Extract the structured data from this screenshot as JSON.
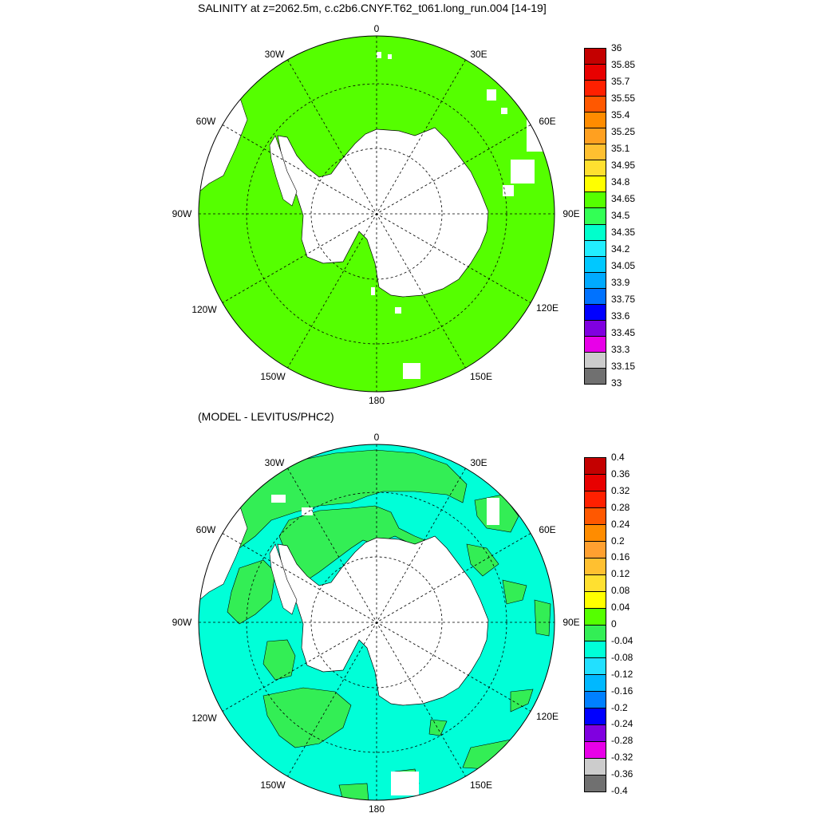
{
  "panels": {
    "top": {
      "title": "SALINITY at z=2062.5m, c.c2b6.CNYF.T62_t061.long_run.004 [14-19]",
      "colorbar": {
        "labels": [
          "36",
          "35.85",
          "35.7",
          "35.55",
          "35.4",
          "35.25",
          "35.1",
          "34.95",
          "34.8",
          "34.65",
          "34.5",
          "34.35",
          "34.2",
          "34.05",
          "33.9",
          "33.75",
          "33.6",
          "33.45",
          "33.3",
          "33.15",
          "33"
        ],
        "colors": [
          "#c40000",
          "#e80000",
          "#ff2000",
          "#ff5800",
          "#ff8c00",
          "#ffa020",
          "#ffc030",
          "#ffe030",
          "#ffff00",
          "#55ff00",
          "#33ff55",
          "#00ffcc",
          "#22eeff",
          "#00c8ff",
          "#00aaff",
          "#0072ff",
          "#0000ff",
          "#8000e0",
          "#e800e8",
          "#cccccc",
          "#707070"
        ]
      },
      "field_color": "#55ff00"
    },
    "bottom": {
      "title": "(MODEL - LEVITUS/PHC2)",
      "colorbar": {
        "labels": [
          "0.4",
          "0.36",
          "0.32",
          "0.28",
          "0.24",
          "0.2",
          "0.16",
          "0.12",
          "0.08",
          "0.04",
          "0",
          "-0.04",
          "-0.08",
          "-0.12",
          "-0.16",
          "-0.2",
          "-0.24",
          "-0.28",
          "-0.32",
          "-0.36",
          "-0.4"
        ],
        "colors": [
          "#c40000",
          "#e80000",
          "#ff2000",
          "#ff5800",
          "#ff8c00",
          "#ffa030",
          "#ffc030",
          "#ffe030",
          "#ffff00",
          "#55ff00",
          "#33ee55",
          "#00ffd8",
          "#22e0ff",
          "#00b8ff",
          "#0080ff",
          "#0000ff",
          "#8000e0",
          "#e800e8",
          "#cccccc",
          "#707070"
        ]
      },
      "field_color": "#00ffd8",
      "positive_color": "#33ee55"
    }
  },
  "map": {
    "projection": "south-polar stereographic",
    "meridian_labels": [
      "0",
      "30E",
      "60E",
      "90E",
      "120E",
      "150E",
      "180",
      "150W",
      "120W",
      "90W",
      "60W",
      "30W"
    ],
    "land_color": "#ffffff"
  }
}
